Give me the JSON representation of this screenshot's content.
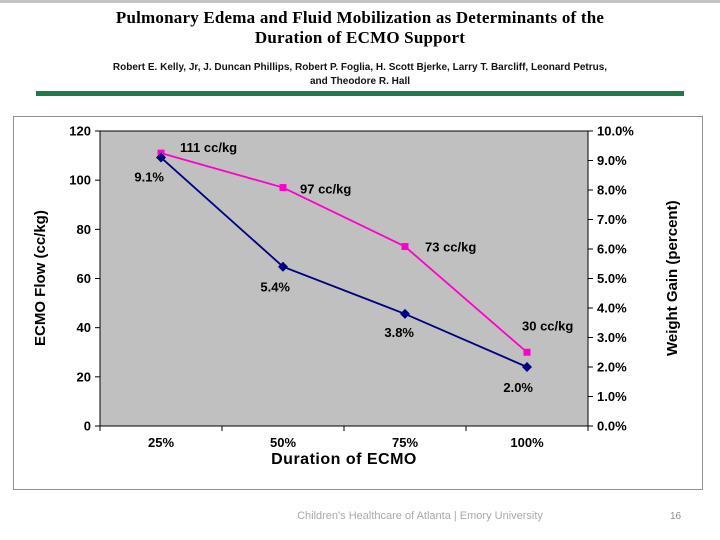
{
  "slide": {
    "title_lines": [
      "Pulmonary Edema and Fluid Mobilization as Determinants of the",
      "Duration of ECMO Support"
    ],
    "author_lines": [
      "Robert E. Kelly, Jr, J. Duncan Phillips, Robert P. Foglia, H. Scott Bjerke, Larry T. Barcliff, Leonard Petrus,",
      "and Theodore R. Hall"
    ],
    "footer": "Children's Healthcare of Atlanta | Emory University",
    "page_number": "16"
  },
  "chart_data": {
    "type": "line",
    "title": "",
    "categories": [
      "25%",
      "50%",
      "75%",
      "100%"
    ],
    "xlabel": "Duration of ECMO",
    "grid": false,
    "legend": "none",
    "plot_bg": "#c0c0c0",
    "left_axis": {
      "label": "ECMO Flow (cc/kg)",
      "min": 0,
      "max": 120,
      "step": 20,
      "ticks": [
        "0",
        "20",
        "40",
        "60",
        "80",
        "100",
        "120"
      ]
    },
    "right_axis": {
      "label": "Weight Gain (percent)",
      "min": 0,
      "max": 10,
      "step": 1,
      "ticks": [
        "0.0%",
        "1.0%",
        "2.0%",
        "3.0%",
        "4.0%",
        "5.0%",
        "6.0%",
        "7.0%",
        "8.0%",
        "9.0%",
        "10.0%"
      ]
    },
    "series": [
      {
        "name": "ECMO Flow (cc/kg)",
        "axis": "left",
        "color": "#ff00cc",
        "marker": "square",
        "values": [
          111,
          97,
          73,
          30
        ],
        "point_labels": [
          "111 cc/kg",
          "97 cc/kg",
          "73 cc/kg",
          "30 cc/kg"
        ]
      },
      {
        "name": "Weight Gain (percent)",
        "axis": "right",
        "color": "#000080",
        "marker": "diamond",
        "values": [
          9.1,
          5.4,
          3.8,
          2.0
        ],
        "point_labels": [
          "9.1%",
          "5.4%",
          "3.8%",
          "2.0%"
        ]
      }
    ]
  }
}
